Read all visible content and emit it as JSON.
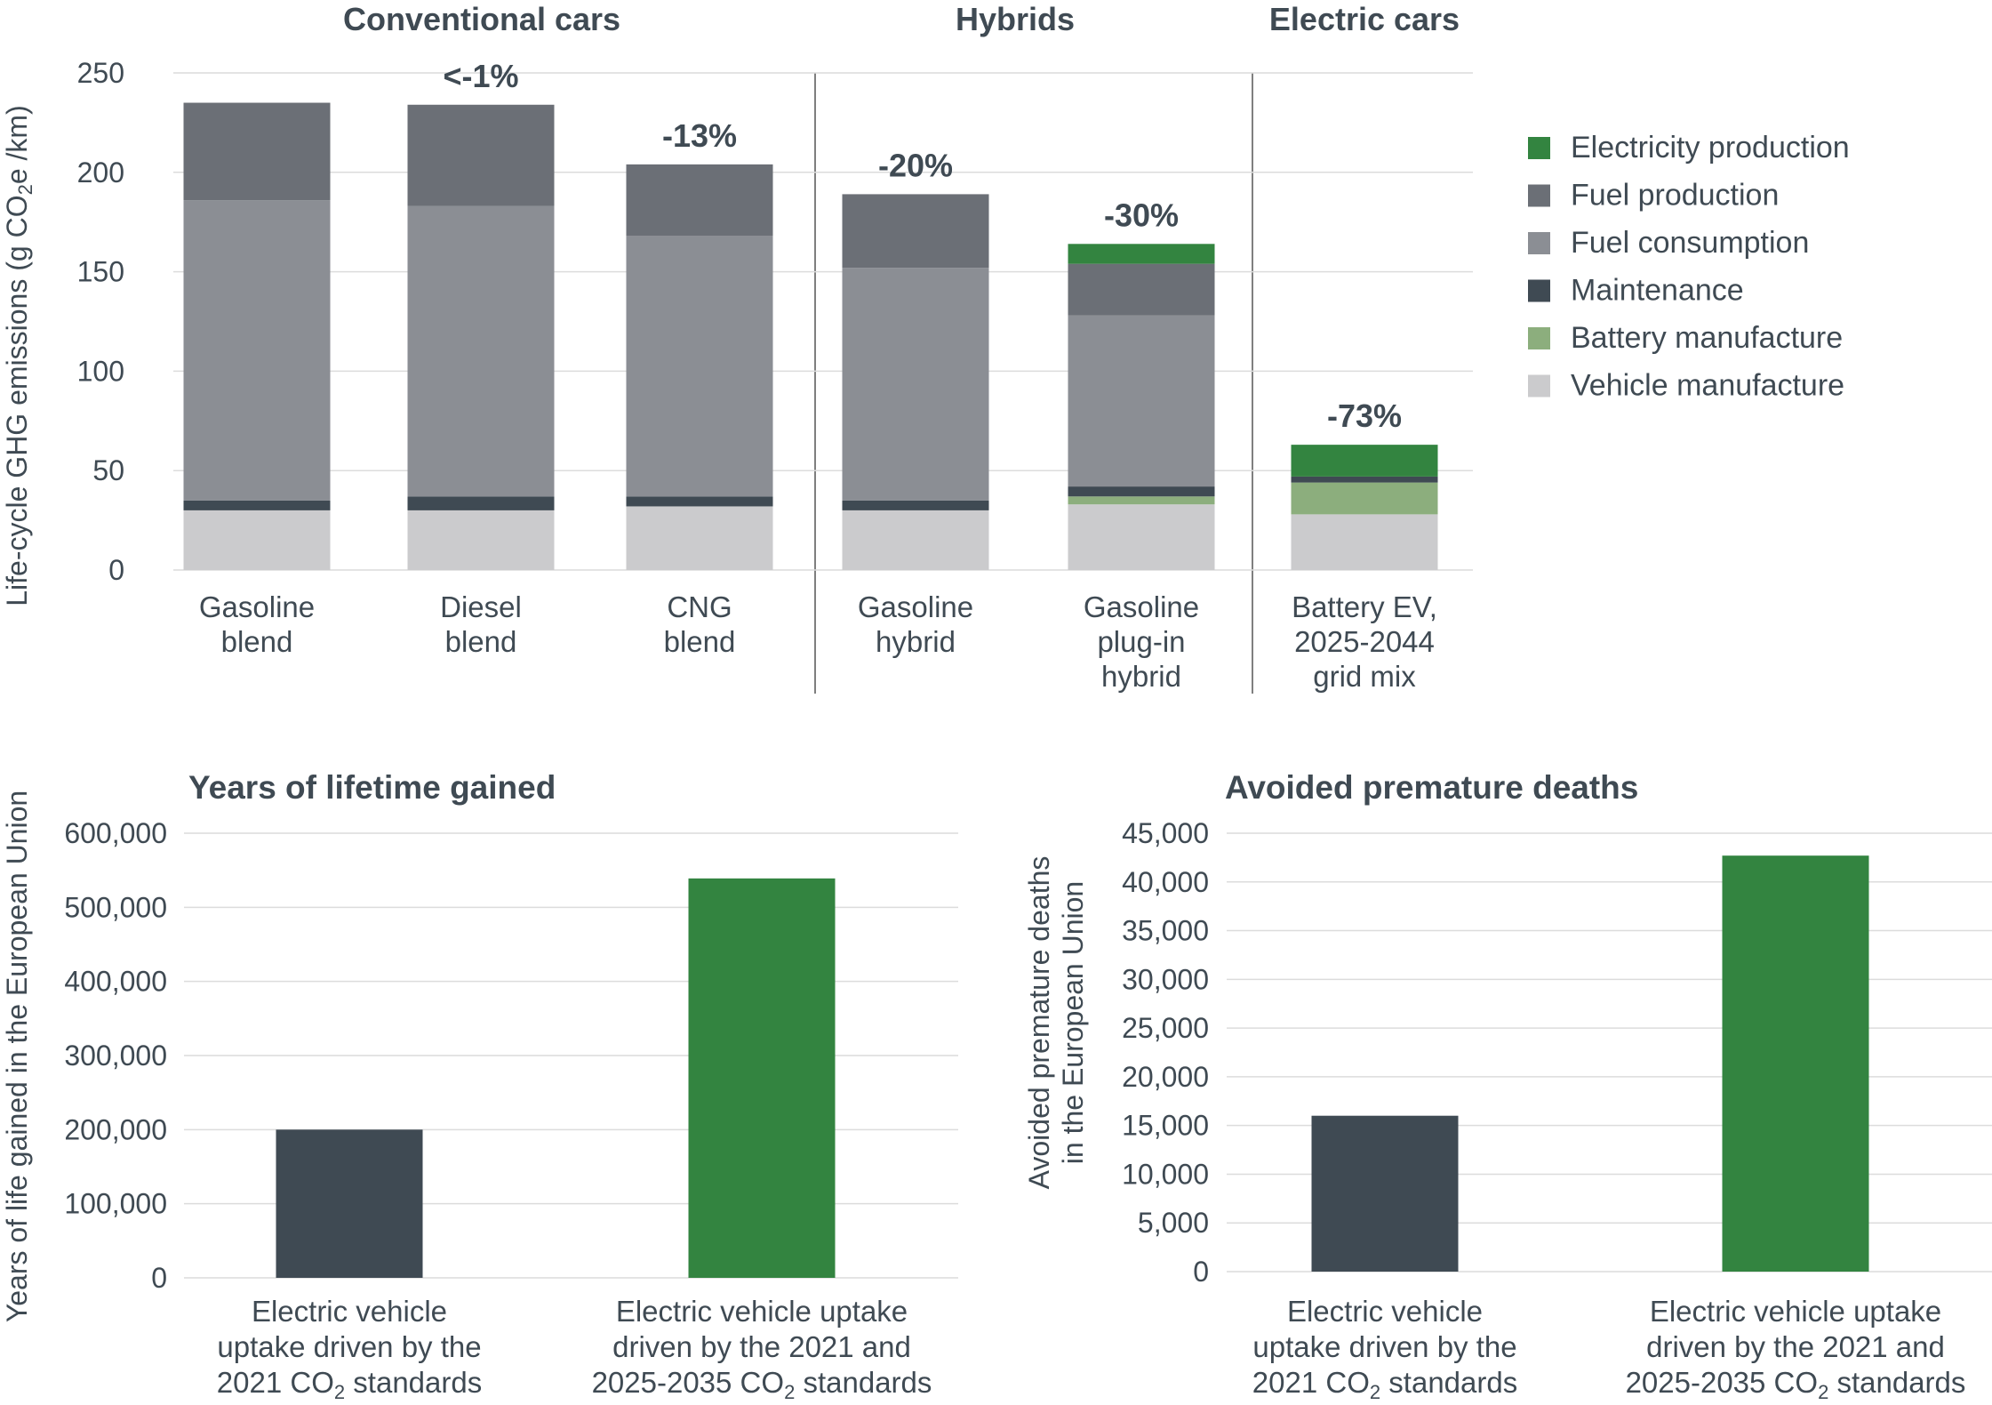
{
  "colors": {
    "electricity_production": "#338440",
    "fuel_production": "#6b6f76",
    "fuel_consumption": "#8b8e94",
    "maintenance": "#3f4a53",
    "battery_manufacture": "#8cae7d",
    "vehicle_manufacture": "#cbcbcd",
    "dark_bar": "#3f4a53",
    "green_bar": "#338440"
  },
  "chart_data": [
    {
      "type": "bar",
      "stacked": true,
      "title": "",
      "ylabel_main": "Life-cycle GHG emissions (g CO",
      "ylabel_sub": "2",
      "ylabel_end": "e /km)",
      "ylim": [
        0,
        250
      ],
      "yticks": [
        "0",
        "50",
        "100",
        "150",
        "200",
        "250"
      ],
      "grid": true,
      "legend_position": "right",
      "groups": [
        "Conventional cars",
        "Hybrids",
        "Electric cars"
      ],
      "categories": [
        [
          "Gasoline",
          "blend"
        ],
        [
          "Diesel",
          "blend"
        ],
        [
          "CNG",
          "blend"
        ],
        [
          "Gasoline",
          "hybrid"
        ],
        [
          "Gasoline",
          "plug-in",
          "hybrid"
        ],
        [
          "Battery EV,",
          "2025-2044",
          "grid mix"
        ]
      ],
      "annotations": [
        "",
        "<-1%",
        "-13%",
        "-20%",
        "-30%",
        "-73%"
      ],
      "legend": [
        "Electricity production",
        "Fuel production",
        "Fuel consumption",
        "Maintenance",
        "Battery manufacture",
        "Vehicle manufacture"
      ],
      "series": [
        {
          "name": "Vehicle manufacture",
          "values": [
            30,
            30,
            32,
            30,
            33,
            28
          ]
        },
        {
          "name": "Battery manufacture",
          "values": [
            0,
            0,
            0,
            0,
            4,
            16
          ]
        },
        {
          "name": "Maintenance",
          "values": [
            5,
            7,
            5,
            5,
            5,
            3
          ]
        },
        {
          "name": "Fuel consumption",
          "values": [
            151,
            146,
            131,
            117,
            86,
            0
          ]
        },
        {
          "name": "Fuel production",
          "values": [
            49,
            51,
            36,
            37,
            26,
            0
          ]
        },
        {
          "name": "Electricity production",
          "values": [
            0,
            0,
            0,
            0,
            10,
            16
          ]
        }
      ]
    },
    {
      "type": "bar",
      "title": "Years of lifetime gained",
      "ylabel": "Years of life gained in the European Union",
      "ylim": [
        0,
        600000
      ],
      "yticks": [
        "0",
        "100,000",
        "200,000",
        "300,000",
        "400,000",
        "500,000",
        "600,000"
      ],
      "grid": true,
      "categories": [
        [
          "Electric vehicle",
          "uptake driven by the",
          "2021 CO|2| standards"
        ],
        [
          "Electric vehicle uptake",
          "driven by the 2021 and",
          "2025-2035 CO|2| standards"
        ]
      ],
      "values": [
        200000,
        539000
      ]
    },
    {
      "type": "bar",
      "title": "Avoided premature deaths",
      "ylabel": [
        "Avoided premature deaths",
        "in the European Union"
      ],
      "ylim": [
        0,
        45000
      ],
      "yticks": [
        "0",
        "5,000",
        "10,000",
        "15,000",
        "20,000",
        "25,000",
        "30,000",
        "35,000",
        "40,000",
        "45,000"
      ],
      "grid": true,
      "categories": [
        [
          "Electric vehicle",
          "uptake driven by the",
          "2021 CO|2| standards"
        ],
        [
          "Electric vehicle uptake",
          "driven by the 2021 and",
          "2025-2035 CO|2| standards"
        ]
      ],
      "values": [
        16000,
        42700
      ]
    }
  ]
}
